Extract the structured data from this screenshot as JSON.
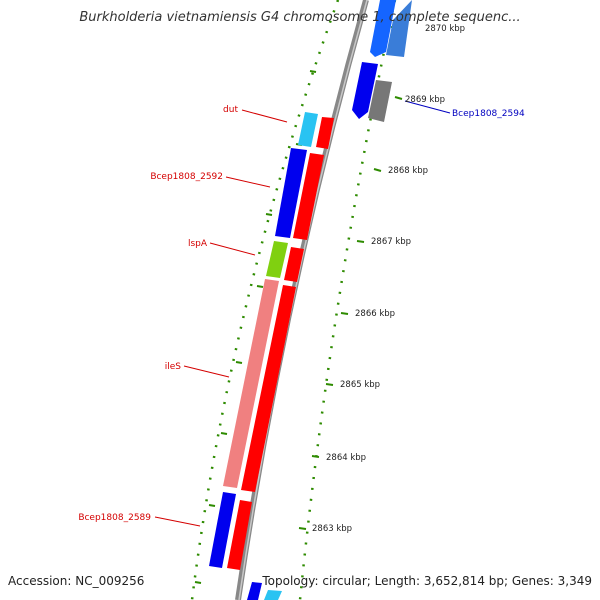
{
  "title": "Burkholderia vietnamiensis G4 chromosome 1, complete sequenc...",
  "footer": {
    "accession": "Accession: NC_009256",
    "topology": "Topology: circular; Length: 3,652,814 bp; Genes: 3,349"
  },
  "ticks": [
    "2870 kbp",
    "2869 kbp",
    "2868 kbp",
    "2867 kbp",
    "2866 kbp",
    "2865 kbp",
    "2864 kbp",
    "2863 kbp"
  ],
  "gene_labels": [
    {
      "text": "dut",
      "color": "#d40000"
    },
    {
      "text": "Bcep1808_2592",
      "color": "#d40000"
    },
    {
      "text": "lspA",
      "color": "#d40000"
    },
    {
      "text": "ileS",
      "color": "#d40000"
    },
    {
      "text": "Bcep1808_2589",
      "color": "#d40000"
    },
    {
      "text": "Bcep1808_2594",
      "color": "#0000c0"
    }
  ],
  "colors": {
    "cds_forward": "#ff0000",
    "cds_reverse": "#0000ee",
    "backbone": "#808080",
    "tick_marks": "#2e8b00"
  }
}
